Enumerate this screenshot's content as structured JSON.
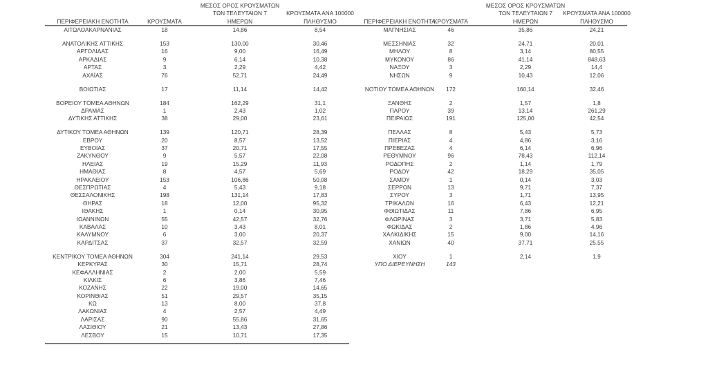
{
  "headers": {
    "region": "ΠΕΡΙΦΕΡΕΙΑΚΗ ΕΝΟΤΗΤΑ",
    "cases": "ΚΡΟΥΣΜΑΤΑ",
    "avg_line1": "ΜΕΣΟΣ ΟΡΟΣ ΚΡΟΥΣΜΑΤΩΝ",
    "avg_line2": "ΤΩΝ ΤΕΛΕΥΤΑΙΩΝ 7",
    "avg_line3": "ΗΜΕΡΩΝ",
    "per_line1": "ΚΡΟΥΣΜΑΤΑ ΑΝΑ 100000",
    "per_line2": "ΠΛΗΘΥΣΜΟ"
  },
  "left_groups": [
    [
      [
        "ΑΙΤΩΛΟΑΚΑΡΝΑΝΙΑΣ",
        "18",
        "14,86",
        "8,54"
      ]
    ],
    [
      [
        "ΑΝΑΤΟΛΙΚΗΣ ΑΤΤΙΚΗΣ",
        "153",
        "130,00",
        "30,46"
      ],
      [
        "ΑΡΓΟΛΙΔΑΣ",
        "16",
        "9,00",
        "16,49"
      ],
      [
        "ΑΡΚΑΔΙΑΣ",
        "9",
        "6,14",
        "10,38"
      ],
      [
        "ΑΡΤΑΣ",
        "3",
        "2,29",
        "4,42"
      ],
      [
        "ΑΧΑΪΑΣ",
        "76",
        "52,71",
        "24,49"
      ]
    ],
    [
      [
        "ΒΟΙΩΤΙΑΣ",
        "17",
        "11,14",
        "14,42"
      ]
    ],
    [
      [
        "ΒΟΡΕΙΟΥ ΤΟΜΕΑ ΑΘΗΝΩΝ",
        "184",
        "162,29",
        "31,1"
      ],
      [
        "ΔΡΑΜΑΣ",
        "1",
        "2,43",
        "1,02"
      ],
      [
        "ΔΥΤΙΚΗΣ ΑΤΤΙΚΗΣ",
        "38",
        "29,00",
        "23,61"
      ]
    ],
    [
      [
        "ΔΥΤΙΚΟΥ ΤΟΜΕΑ ΑΘΗΝΩΝ",
        "139",
        "120,71",
        "28,39"
      ],
      [
        "ΕΒΡΟΥ",
        "20",
        "8,57",
        "13,52"
      ],
      [
        "ΕΥΒΟΙΑΣ",
        "37",
        "20,71",
        "17,55"
      ],
      [
        "ΖΑΚΥΝΘΟΥ",
        "9",
        "5,57",
        "22,08"
      ],
      [
        "ΗΛΕΙΑΣ",
        "19",
        "15,29",
        "11,93"
      ],
      [
        "ΗΜΑΘΙΑΣ",
        "8",
        "4,57",
        "5,69"
      ],
      [
        "ΗΡΑΚΛΕΙΟΥ",
        "153",
        "106,86",
        "50,08"
      ],
      [
        "ΘΕΣΠΡΩΤΙΑΣ",
        "4",
        "5,43",
        "9,18"
      ],
      [
        "ΘΕΣΣΑΛΟΝΙΚΗΣ",
        "198",
        "131,14",
        "17,83"
      ],
      [
        "ΘΗΡΑΣ",
        "18",
        "12,00",
        "95,32"
      ],
      [
        "ΙΘΑΚΗΣ",
        "1",
        "0,14",
        "30,95"
      ],
      [
        "ΙΩΑΝΝΙΝΩΝ",
        "55",
        "42,57",
        "32,76"
      ],
      [
        "ΚΑΒΑΛΑΣ",
        "10",
        "3,43",
        "8,01"
      ],
      [
        "ΚΑΛΥΜΝΟΥ",
        "6",
        "3,00",
        "20,37"
      ],
      [
        "ΚΑΡΔΙΤΣΑΣ",
        "37",
        "32,57",
        "32,59"
      ]
    ],
    [
      [
        "ΚΕΝΤΡΙΚΟΥ ΤΟΜΕΑ ΑΘΗΝΩΝ",
        "304",
        "241,14",
        "29,53"
      ],
      [
        "ΚΕΡΚΥΡΑΣ",
        "30",
        "15,71",
        "28,74"
      ],
      [
        "ΚΕΦΑΛΛΗΝΙΑΣ",
        "2",
        "2,00",
        "5,59"
      ],
      [
        "ΚΙΛΚΙΣ",
        "6",
        "3,86",
        "7,46"
      ],
      [
        "ΚΟΖΑΝΗΣ",
        "22",
        "19,00",
        "14,65"
      ],
      [
        "ΚΟΡΙΝΘΙΑΣ",
        "51",
        "29,57",
        "35,15"
      ],
      [
        "ΚΩ",
        "13",
        "8,00",
        "37,8"
      ],
      [
        "ΛΑΚΩΝΙΑΣ",
        "4",
        "2,57",
        "4,49"
      ],
      [
        "ΛΑΡΙΣΑΣ",
        "90",
        "55,86",
        "31,65"
      ],
      [
        "ΛΑΣΙΘΙΟΥ",
        "21",
        "13,43",
        "27,86"
      ],
      [
        "ΛΕΣΒΟΥ",
        "15",
        "10,71",
        "17,35"
      ]
    ]
  ],
  "right_groups": [
    [
      [
        "ΜΑΓΝΗΣΙΑΣ",
        "46",
        "35,86",
        "24,21"
      ]
    ],
    [
      [
        "ΜΕΣΣΗΝΙΑΣ",
        "32",
        "24,71",
        "20,01"
      ],
      [
        "ΜΗΛΟΥ",
        "8",
        "3,14",
        "80,55"
      ],
      [
        "ΜΥΚΟΝΟΥ",
        "86",
        "41,14",
        "848,63"
      ],
      [
        "ΝΑΞΟΥ",
        "3",
        "2,29",
        "14,4"
      ],
      [
        "ΝΗΣΩΝ",
        "9",
        "10,43",
        "12,06"
      ]
    ],
    [
      [
        "ΝΟΤΙΟΥ ΤΟΜΕΑ ΑΘΗΝΩΝ",
        "172",
        "160,14",
        "32,46"
      ]
    ],
    [
      [
        "ΞΑΝΘΗΣ",
        "2",
        "1,57",
        "1,8"
      ],
      [
        "ΠΑΡΟΥ",
        "39",
        "13,14",
        "261,29"
      ],
      [
        "ΠΕΙΡΑΙΩΣ",
        "191",
        "125,00",
        "42,54"
      ]
    ],
    [
      [
        "ΠΕΛΛΑΣ",
        "8",
        "5,43",
        "5,73"
      ],
      [
        "ΠΙΕΡΙΑΣ",
        "4",
        "4,86",
        "3,16"
      ],
      [
        "ΠΡΕΒΕΖΑΣ",
        "4",
        "6,14",
        "6,96"
      ],
      [
        "ΡΕΘΥΜΝΟΥ",
        "96",
        "78,43",
        "112,14"
      ],
      [
        "ΡΟΔΟΠΗΣ",
        "2",
        "1,14",
        "1,79"
      ],
      [
        "ΡΟΔΟΥ",
        "42",
        "18,29",
        "35,05"
      ],
      [
        "ΣΑΜΟΥ",
        "1",
        "0,14",
        "3,03"
      ],
      [
        "ΣΕΡΡΩΝ",
        "13",
        "9,71",
        "7,37"
      ],
      [
        "ΣΥΡΟΥ",
        "3",
        "1,71",
        "13,95"
      ],
      [
        "ΤΡΙΚΑΛΩΝ",
        "16",
        "6,43",
        "12,21"
      ],
      [
        "ΦΘΙΩΤΙΔΑΣ",
        "11",
        "7,86",
        "6,95"
      ],
      [
        "ΦΛΩΡΙΝΑΣ",
        "3",
        "3,71",
        "5,83"
      ],
      [
        "ΦΩΚΙΔΑΣ",
        "2",
        "1,86",
        "4,96"
      ],
      [
        "ΧΑΛΚΙΔΙΚΗΣ",
        "15",
        "9,00",
        "14,16"
      ],
      [
        "ΧΑΝΙΩΝ",
        "40",
        "37,71",
        "25,55"
      ]
    ],
    [
      [
        "ΧΙΟΥ",
        "1",
        "2,14",
        "1,9"
      ],
      [
        "ΥΠΟ ΔΙΕΡΕΥΝΗΣΗ",
        "143",
        "",
        ""
      ]
    ]
  ],
  "italic_rows": [
    "ΥΠΟ ΔΙΕΡΕΥΝΗΣΗ"
  ]
}
